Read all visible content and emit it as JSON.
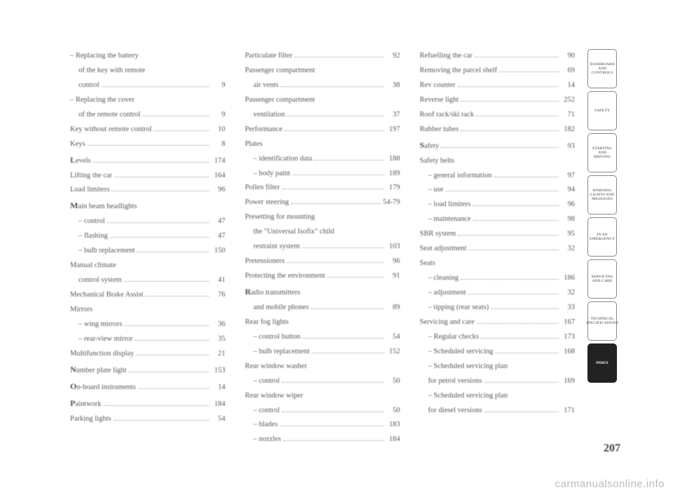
{
  "page_number": "207",
  "watermark": "carmanualsonline.info",
  "sidebar": {
    "tabs": [
      {
        "label": "DASHBOARD AND CONTROLS"
      },
      {
        "label": "SAFETY"
      },
      {
        "label": "STARTING AND DRIVING"
      },
      {
        "label": "WARNING LIGHTS AND MESSAGES"
      },
      {
        "label": "IN AN EMERGENCY"
      },
      {
        "label": "SERVICING AND CARE"
      },
      {
        "label": "TECHNICAL SPECIFICATIONS"
      },
      {
        "label": "INDEX",
        "active": true
      }
    ]
  },
  "col1": [
    {
      "label": "– Replacing the battery",
      "nowrap": true
    },
    {
      "label": "of the key with remote",
      "sub": true,
      "nowrap": true
    },
    {
      "label": "control",
      "page": "9",
      "sub": true
    },
    {
      "label": "– Replacing the cover",
      "nowrap": true
    },
    {
      "label": "of the remote control",
      "page": "9",
      "sub": true
    },
    {
      "label": "Key without remote control",
      "page": "10"
    },
    {
      "label": "Keys",
      "page": "8"
    },
    {
      "label": "Levels",
      "page": "174",
      "lead": "L"
    },
    {
      "label": "Lifting the car",
      "page": "164"
    },
    {
      "label": "Load limiters",
      "page": "96"
    },
    {
      "label": "Main beam headlights",
      "lead": "M",
      "nowrap": true
    },
    {
      "label": "– control",
      "page": "47",
      "sub": true
    },
    {
      "label": "– flashing",
      "page": "47",
      "sub": true
    },
    {
      "label": "– bulb replacement",
      "page": "150",
      "sub": true
    },
    {
      "label": "Manual climate",
      "nowrap": true
    },
    {
      "label": "control system",
      "page": "41",
      "sub": true
    },
    {
      "label": "Mechanical Brake Assist",
      "page": "76"
    },
    {
      "label": "Mirrors",
      "nowrap": true
    },
    {
      "label": "– wing mirrors",
      "page": "36",
      "sub": true
    },
    {
      "label": "– rear-view mirror",
      "page": "35",
      "sub": true
    },
    {
      "label": "Multifunction display",
      "page": "21"
    },
    {
      "label": "Number plate light",
      "page": "153",
      "lead": "N"
    },
    {
      "label": "On-board instruments",
      "page": "14",
      "lead": "O"
    },
    {
      "label": "Paintwork",
      "page": "184",
      "lead": "P"
    },
    {
      "label": "Parking lights",
      "page": "54"
    }
  ],
  "col2": [
    {
      "label": "Particulate filter",
      "page": "92"
    },
    {
      "label": "Passenger compartment",
      "nowrap": true
    },
    {
      "label": "air vents",
      "page": "38",
      "sub": true
    },
    {
      "label": "Passenger compartment",
      "nowrap": true
    },
    {
      "label": "ventilation",
      "page": "37",
      "sub": true
    },
    {
      "label": "Performance",
      "page": "197"
    },
    {
      "label": "Plates",
      "nowrap": true
    },
    {
      "label": "– identification data",
      "page": "188",
      "sub": true
    },
    {
      "label": "– body paint",
      "page": "189",
      "sub": true
    },
    {
      "label": "Pollen filter",
      "page": "179"
    },
    {
      "label": "Power steering",
      "page": "54-79"
    },
    {
      "label": "Presetting for mounting",
      "nowrap": true
    },
    {
      "label": "the \"Universal Isofix\" child",
      "sub": true,
      "nowrap": true
    },
    {
      "label": "restraint system",
      "page": "103",
      "sub": true
    },
    {
      "label": "Pretensioners",
      "page": "96"
    },
    {
      "label": "Protecting the environment",
      "page": "91"
    },
    {
      "label": "Radio transmitters",
      "lead": "R",
      "nowrap": true
    },
    {
      "label": "and mobile phones",
      "page": "89",
      "sub": true
    },
    {
      "label": "Rear fog lights",
      "nowrap": true
    },
    {
      "label": "– control button",
      "page": "54",
      "sub": true
    },
    {
      "label": "– bulb replacement",
      "page": "152",
      "sub": true
    },
    {
      "label": "Rear window washer",
      "nowrap": true
    },
    {
      "label": "– control",
      "page": "50",
      "sub": true
    },
    {
      "label": "Rear window wiper",
      "nowrap": true
    },
    {
      "label": "– control",
      "page": "50",
      "sub": true
    },
    {
      "label": "– blades",
      "page": "183",
      "sub": true
    },
    {
      "label": "– nozzles",
      "page": "184",
      "sub": true
    }
  ],
  "col3": [
    {
      "label": "Refuelling the car",
      "page": "90"
    },
    {
      "label": "Removing the parcel shelf",
      "page": "69"
    },
    {
      "label": "Rev counter",
      "page": "14"
    },
    {
      "label": "Reverse light",
      "page": "252"
    },
    {
      "label": "Roof rack/ski rack",
      "page": "71"
    },
    {
      "label": "Rubber tubes",
      "page": "182"
    },
    {
      "label": "Safety",
      "page": "93",
      "lead": "S"
    },
    {
      "label": "Safety belts",
      "nowrap": true
    },
    {
      "label": "– general information",
      "page": "97",
      "sub": true
    },
    {
      "label": "– use",
      "page": "94",
      "sub": true
    },
    {
      "label": "– load limiters",
      "page": "96",
      "sub": true
    },
    {
      "label": "– maintenance",
      "page": "98",
      "sub": true
    },
    {
      "label": "SBR system",
      "page": "95"
    },
    {
      "label": "Seat adjustment",
      "page": "32"
    },
    {
      "label": "Seats",
      "nowrap": true
    },
    {
      "label": "– cleaning",
      "page": "186",
      "sub": true
    },
    {
      "label": "– adjustment",
      "page": "32",
      "sub": true
    },
    {
      "label": "– tipping (rear seats)",
      "page": "33",
      "sub": true
    },
    {
      "label": "Servicing and care",
      "page": "167"
    },
    {
      "label": "– Regular checks",
      "page": "173",
      "sub": true
    },
    {
      "label": "– Scheduled servicing",
      "page": "168",
      "sub": true
    },
    {
      "label": "– Scheduled servicing plan",
      "sub": true,
      "nowrap": true
    },
    {
      "label": "for petrol versions",
      "page": "169",
      "sub": true,
      "sub2": true
    },
    {
      "label": "– Scheduled servicing plan",
      "sub": true,
      "nowrap": true
    },
    {
      "label": "for diesel versions",
      "page": "171",
      "sub": true,
      "sub2": true
    }
  ]
}
